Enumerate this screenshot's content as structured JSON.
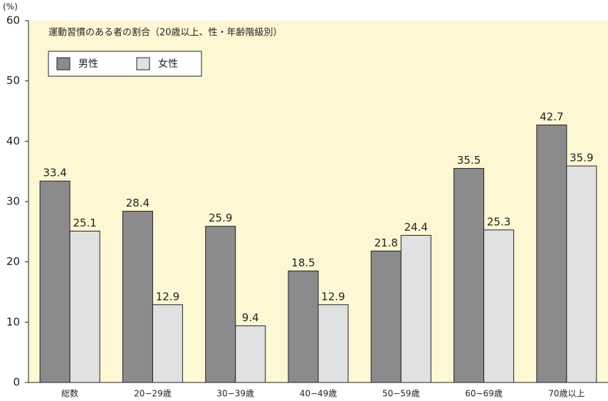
{
  "chart_data": {
    "type": "bar",
    "title": "運動習慣のある者の割合（20歳以上、性・年齢階級別）",
    "y_label": "(%)",
    "categories": [
      "総数",
      "20−29歳",
      "30−39歳",
      "40−49歳",
      "50−59歳",
      "60−69歳",
      "70歳以上"
    ],
    "series": [
      {
        "name": "男性",
        "color": "#8b8b8d",
        "values": [
          33.4,
          28.4,
          25.9,
          18.5,
          21.8,
          35.5,
          42.7
        ]
      },
      {
        "name": "女性",
        "color": "#e0e1e3",
        "values": [
          25.1,
          12.9,
          9.4,
          12.9,
          24.4,
          25.3,
          35.9
        ]
      }
    ],
    "ylim": [
      0,
      60
    ],
    "yticks": [
      0,
      10,
      20,
      30,
      40,
      50,
      60
    ],
    "grid": false,
    "legend": "upper left",
    "background": "#fdf7d3"
  }
}
